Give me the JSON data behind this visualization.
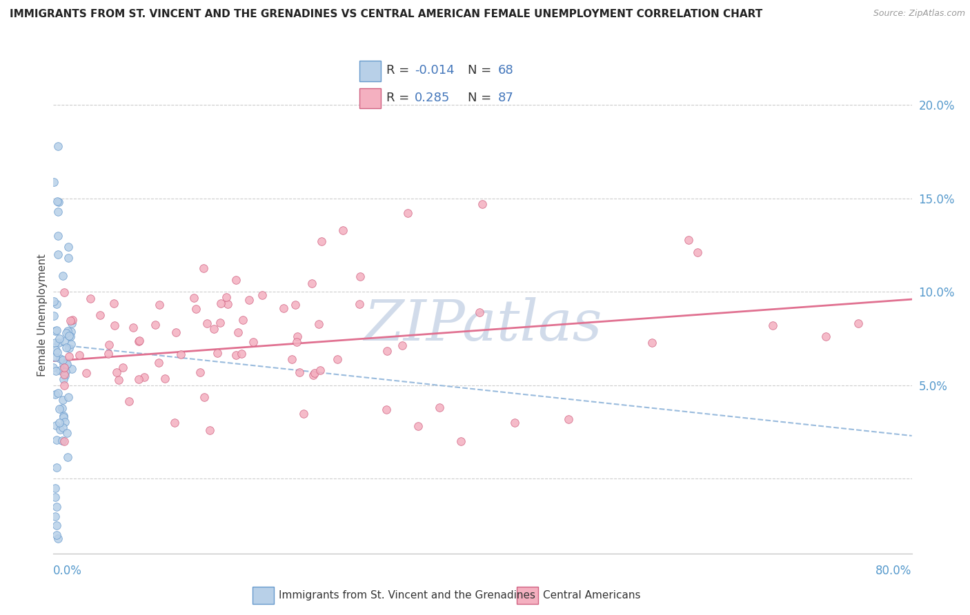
{
  "title": "IMMIGRANTS FROM ST. VINCENT AND THE GRENADINES VS CENTRAL AMERICAN FEMALE UNEMPLOYMENT CORRELATION CHART",
  "source": "Source: ZipAtlas.com",
  "ylabel": "Female Unemployment",
  "xlim": [
    0.0,
    0.8
  ],
  "ylim": [
    -0.04,
    0.215
  ],
  "y_ticks": [
    0.0,
    0.05,
    0.1,
    0.15,
    0.2
  ],
  "y_tick_labels": [
    "",
    "5.0%",
    "10.0%",
    "15.0%",
    "20.0%"
  ],
  "blue_R": -0.014,
  "blue_N": 68,
  "pink_R": 0.285,
  "pink_N": 87,
  "blue_fill": "#b8d0e8",
  "blue_edge": "#6699cc",
  "pink_fill": "#f4b0c0",
  "pink_edge": "#d06080",
  "trend_blue_color": "#99bbdd",
  "trend_pink_color": "#e07090",
  "watermark_color": "#ccd8e8",
  "background_color": "#ffffff",
  "grid_color": "#cccccc",
  "tick_color": "#5599cc",
  "title_color": "#222222",
  "source_color": "#999999",
  "legend_box_blue": "#b8d0e8",
  "legend_box_pink": "#f4b0c0",
  "legend_blue_edge": "#6699cc",
  "legend_pink_edge": "#d06080",
  "legend_text_color": "#333333",
  "legend_value_color": "#4477bb"
}
